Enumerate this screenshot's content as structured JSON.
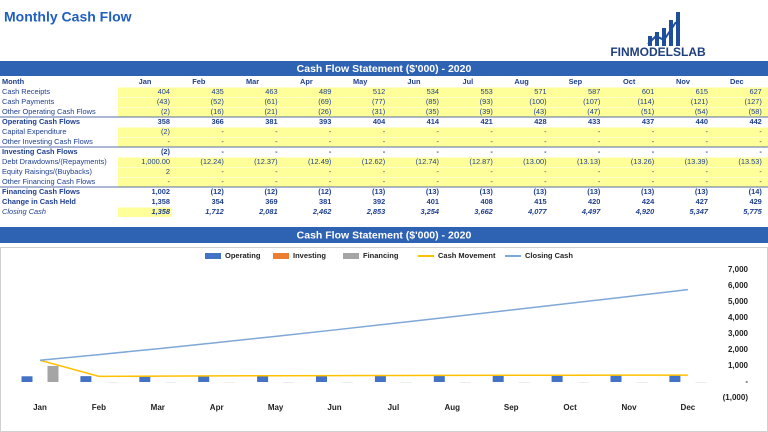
{
  "header": {
    "title": "Monthly Cash Flow",
    "logo": "FINMODELSLAB"
  },
  "table": {
    "title": "Cash Flow Statement ($'000) - 2020",
    "columns": [
      "Month",
      "Jan",
      "Feb",
      "Mar",
      "Apr",
      "May",
      "Jun",
      "Jul",
      "Aug",
      "Sep",
      "Oct",
      "Nov",
      "Dec"
    ],
    "rows": [
      [
        "Cash Receipts",
        "404",
        "435",
        "463",
        "489",
        "512",
        "534",
        "553",
        "571",
        "587",
        "601",
        "615",
        "627"
      ],
      [
        "Cash Payments",
        "(43)",
        "(52)",
        "(61)",
        "(69)",
        "(77)",
        "(85)",
        "(93)",
        "(100)",
        "(107)",
        "(114)",
        "(121)",
        "(127)"
      ],
      [
        "Other Operating Cash Flows",
        "(2)",
        "(16)",
        "(21)",
        "(26)",
        "(31)",
        "(35)",
        "(39)",
        "(43)",
        "(47)",
        "(51)",
        "(54)",
        "(58)"
      ],
      [
        "Operating Cash Flows",
        "358",
        "366",
        "381",
        "393",
        "404",
        "414",
        "421",
        "428",
        "433",
        "437",
        "440",
        "442"
      ],
      [
        "Capital Expenditure",
        "(2)",
        "-",
        "-",
        "-",
        "-",
        "-",
        "-",
        "-",
        "-",
        "-",
        "-",
        "-"
      ],
      [
        "Other Investing Cash Flows",
        "-",
        "-",
        "-",
        "-",
        "-",
        "-",
        "-",
        "-",
        "-",
        "-",
        "-",
        "-"
      ],
      [
        "Investing Cash Flows",
        "(2)",
        "-",
        "-",
        "-",
        "-",
        "-",
        "-",
        "-",
        "-",
        "-",
        "-",
        "-"
      ],
      [
        "Debt Drawdowns/(Repayments)",
        "1,000.00",
        "(12.24)",
        "(12.37)",
        "(12.49)",
        "(12.62)",
        "(12.74)",
        "(12.87)",
        "(13.00)",
        "(13.13)",
        "(13.26)",
        "(13.39)",
        "(13.53)"
      ],
      [
        "Equity Raisings/(Buybacks)",
        "2",
        "-",
        "-",
        "-",
        "-",
        "-",
        "-",
        "-",
        "-",
        "-",
        "-",
        "-"
      ],
      [
        "Other Financing Cash Flows",
        "-",
        "-",
        "-",
        "-",
        "-",
        "-",
        "-",
        "-",
        "-",
        "-",
        "-",
        "-"
      ],
      [
        "Financing Cash Flows",
        "1,002",
        "(12)",
        "(12)",
        "(12)",
        "(13)",
        "(13)",
        "(13)",
        "(13)",
        "(13)",
        "(13)",
        "(13)",
        "(14)"
      ],
      [
        "Change in Cash Held",
        "1,358",
        "354",
        "369",
        "381",
        "392",
        "401",
        "408",
        "415",
        "420",
        "424",
        "427",
        "429"
      ],
      [
        "Closing Cash",
        "1,358",
        "1,712",
        "2,081",
        "2,462",
        "2,853",
        "3,254",
        "3,662",
        "4,077",
        "4,497",
        "4,920",
        "5,347",
        "5,775"
      ]
    ]
  },
  "chart_data": {
    "type": "bar",
    "title": "Cash Flow Statement ($'000) - 2020",
    "categories": [
      "Jan",
      "Feb",
      "Mar",
      "Apr",
      "May",
      "Jun",
      "Jul",
      "Aug",
      "Sep",
      "Oct",
      "Nov",
      "Dec"
    ],
    "series": [
      {
        "name": "Operating",
        "type": "bar",
        "color": "#4472c4",
        "values": [
          358,
          366,
          381,
          393,
          404,
          414,
          421,
          428,
          433,
          437,
          440,
          442
        ]
      },
      {
        "name": "Investing",
        "type": "bar",
        "color": "#ed7d31",
        "values": [
          -2,
          0,
          0,
          0,
          0,
          0,
          0,
          0,
          0,
          0,
          0,
          0
        ]
      },
      {
        "name": "Financing",
        "type": "bar",
        "color": "#a5a5a5",
        "values": [
          1002,
          -12,
          -12,
          -12,
          -13,
          -13,
          -13,
          -13,
          -13,
          -13,
          -13,
          -14
        ]
      },
      {
        "name": "Cash Movement",
        "type": "line",
        "color": "#ffc000",
        "values": [
          1358,
          354,
          369,
          381,
          392,
          401,
          408,
          415,
          420,
          424,
          427,
          429
        ]
      },
      {
        "name": "Closing Cash",
        "type": "line",
        "color": "#7fa7d8",
        "values": [
          1358,
          1712,
          2081,
          2462,
          2853,
          3254,
          3662,
          4077,
          4497,
          4920,
          5347,
          5775
        ]
      }
    ],
    "ylim": [
      -1000,
      7000
    ],
    "yticks": [
      {
        "value": -1000,
        "label": "(1,000)"
      },
      {
        "value": 0,
        "label": "-"
      },
      {
        "value": 1000,
        "label": "1,000"
      },
      {
        "value": 2000,
        "label": "2,000"
      },
      {
        "value": 3000,
        "label": "3,000"
      },
      {
        "value": 4000,
        "label": "4,000"
      },
      {
        "value": 5000,
        "label": "5,000"
      },
      {
        "value": 6000,
        "label": "6,000"
      },
      {
        "value": 7000,
        "label": "7,000"
      }
    ]
  }
}
